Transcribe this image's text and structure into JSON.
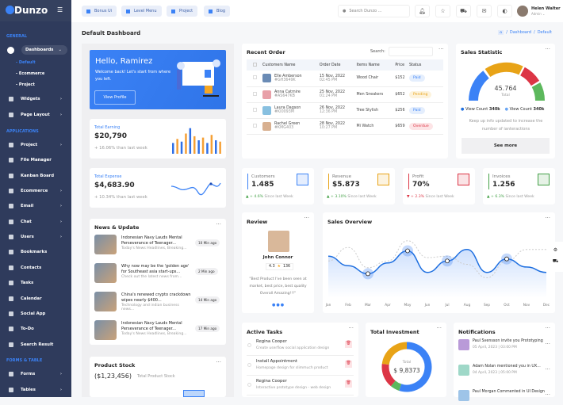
{
  "app": {
    "name": "Dunzo"
  },
  "sidebar": {
    "sections": [
      "GENERAL",
      "APPLICATIONS",
      "FORMS & TABLE"
    ],
    "dashboards": "Dashboards",
    "subitems": [
      "Default",
      "Ecommerce",
      "Project"
    ],
    "items": [
      {
        "label": "Widgets",
        "chev": true
      },
      {
        "label": "Page Layout",
        "chev": true
      }
    ],
    "apps": [
      {
        "label": "Project",
        "chev": true
      },
      {
        "label": "File Manager"
      },
      {
        "label": "Kanban Board"
      },
      {
        "label": "Ecommerce",
        "chev": true
      },
      {
        "label": "Email",
        "chev": true
      },
      {
        "label": "Chat",
        "chev": true
      },
      {
        "label": "Users",
        "chev": true
      },
      {
        "label": "Bookmarks"
      },
      {
        "label": "Contacts"
      },
      {
        "label": "Tasks"
      },
      {
        "label": "Calendar"
      },
      {
        "label": "Social App"
      },
      {
        "label": "To-Do"
      },
      {
        "label": "Search Result"
      }
    ],
    "forms": [
      {
        "label": "Forms",
        "chev": true
      },
      {
        "label": "Tables",
        "chev": true
      }
    ]
  },
  "topbar": {
    "buttons": [
      "Bonus Ui",
      "Level Menu",
      "Project",
      "Blog"
    ],
    "search_placeholder": "Search Dunzo ...",
    "user": {
      "name": "Helen Walter",
      "role": "Admin ⌄"
    }
  },
  "page": {
    "title": "Default Dashboard",
    "breadcrumb": [
      "Dashboard",
      "Default"
    ]
  },
  "hero": {
    "title": "Hello, Ramirez",
    "text": "Welcome back! Let's start from where you left.",
    "button": "View Profile"
  },
  "earning": {
    "label": "Total Earning",
    "value": "$20,790",
    "change": "+ 16.06% than last week",
    "bars": [
      40,
      55,
      45,
      75,
      95,
      65,
      50,
      60,
      40,
      70,
      50,
      45
    ]
  },
  "expense": {
    "label": "Total Expense",
    "value": "$4,683.90",
    "change": "+ 10.34% than last week"
  },
  "news": {
    "title": "News & Update",
    "items": [
      {
        "title": "Indonesian Navy Lauds Mental Perseverance of Teenager...",
        "sub": "Today's News Headlines, Breaking...",
        "time": "10 Min ago"
      },
      {
        "title": "Why now may be the 'golden age' for Southeast asia start-ups...",
        "sub": "Check out the latest news from...",
        "time": "2 Min ago"
      },
      {
        "title": "China's renewed crypto crackdown wipes nearly $400...",
        "sub": "Technology and indian business news...",
        "time": "14 Min ago"
      },
      {
        "title": "Indonesian Navy Lauds Mental Perseverance of Teenager...",
        "sub": "Today's News Headlines, Breaking...",
        "time": "17 Min ago"
      }
    ]
  },
  "stock": {
    "title": "Product Stock",
    "value": "($1,23,456)",
    "label": "Total Product Stock"
  },
  "orders": {
    "title": "Recent Order",
    "search_label": "Search:",
    "columns": [
      "Customers Name",
      "Order Date",
      "Items Name",
      "Price",
      "Status"
    ],
    "rows": [
      {
        "name": "Elle Amberson",
        "id": "#GH3649K",
        "date": "15 Nov, 2022",
        "time": "02:45 PM",
        "item": "Wood Chair",
        "price": "$152",
        "status": "Paid"
      },
      {
        "name": "Anna Catmire",
        "id": "#AS647KB",
        "date": "25 Nov, 2022",
        "time": "01:24 PM",
        "item": "Men Sneakers",
        "price": "$652",
        "status": "Pending"
      },
      {
        "name": "Laura Dagson",
        "id": "#KI0093M",
        "date": "26 Nov, 2022",
        "time": "12:36 PM",
        "item": "Tree Stylish",
        "price": "$256",
        "status": "Paid"
      },
      {
        "name": "Rachel Green",
        "id": "#KMG403",
        "date": "28 Nov, 2022",
        "time": "10:27 PM",
        "item": "Mi Watch",
        "price": "$659",
        "status": "Overdue"
      }
    ]
  },
  "sales_stat": {
    "title": "Sales Statistic",
    "total": "45.764",
    "total_label": "Total",
    "legend": [
      {
        "label": "View Count",
        "value": "340k",
        "color": "#1e6fe0"
      },
      {
        "label": "View Count",
        "value": "340k",
        "color": "#6aa6f3"
      }
    ],
    "text": "Keep up info updated to increase the number of ianteractions",
    "button": "See more"
  },
  "stats": [
    {
      "label": "Customers",
      "value": "1.485",
      "change": "+ 4.6%",
      "since": "Since last Week",
      "color": "#3b82f6",
      "up": true
    },
    {
      "label": "Revenue",
      "value": "$5.873",
      "change": "+ 3.10%",
      "since": "Since last Week",
      "color": "#e8a317",
      "up": true
    },
    {
      "label": "Profit",
      "value": "70%",
      "change": "+ 2.3%",
      "since": "Since last Week",
      "color": "#dc3545",
      "up": false
    },
    {
      "label": "Invoices",
      "value": "1.256",
      "change": "+ 6.3%",
      "since": "Since last Week",
      "color": "#43a047",
      "up": true
    }
  ],
  "review": {
    "title": "Review",
    "name": "John Connor",
    "rating": "4.3",
    "count": "136",
    "quote": "\"Best Product I've been seen at market, best price, best quality Overall Amazing!!!\""
  },
  "sales_overview": {
    "title": "Sales Overview",
    "months": [
      "Jan",
      "Feb",
      "Mar",
      "Apr",
      "May",
      "Jun",
      "Jul",
      "Aug",
      "Sep",
      "Oct",
      "Nov",
      "Dec"
    ],
    "series": [
      62,
      48,
      36,
      52,
      70,
      38,
      55,
      72,
      38,
      58,
      46,
      38
    ],
    "compare": [
      55,
      75,
      45,
      55,
      85,
      60,
      62,
      50,
      30,
      55,
      72,
      72
    ],
    "highlight": [
      2,
      4,
      6,
      9
    ]
  },
  "tasks": {
    "title": "Active Tasks",
    "items": [
      {
        "title": "Regina Cooper",
        "sub": "Create userflow social application design"
      },
      {
        "title": "Install Appointment",
        "sub": "Homepage design for slimmuch product"
      },
      {
        "title": "Regina Cooper",
        "sub": "Interactive prototype design - web design"
      }
    ]
  },
  "investment": {
    "title": "Total Investment",
    "label": "Total",
    "value": "$ 9,8373",
    "slices": [
      {
        "v": 55,
        "c": "#3b82f6"
      },
      {
        "v": 6,
        "c": "#5cb85c"
      },
      {
        "v": 16,
        "c": "#dc3545"
      },
      {
        "v": 23,
        "c": "#e8a317"
      }
    ]
  },
  "notifications": {
    "title": "Notifications",
    "items": [
      {
        "text": "Paul Svensson invite you Prototyping",
        "time": "05 April, 2023 | 03:00 PM"
      },
      {
        "text": "Adam Nolan mentioned you in UX...",
        "time": "04 April, 2023 | 05:00 PM"
      },
      {
        "text": "Paul Morgan Commented in UI Design",
        "time": ""
      }
    ]
  }
}
